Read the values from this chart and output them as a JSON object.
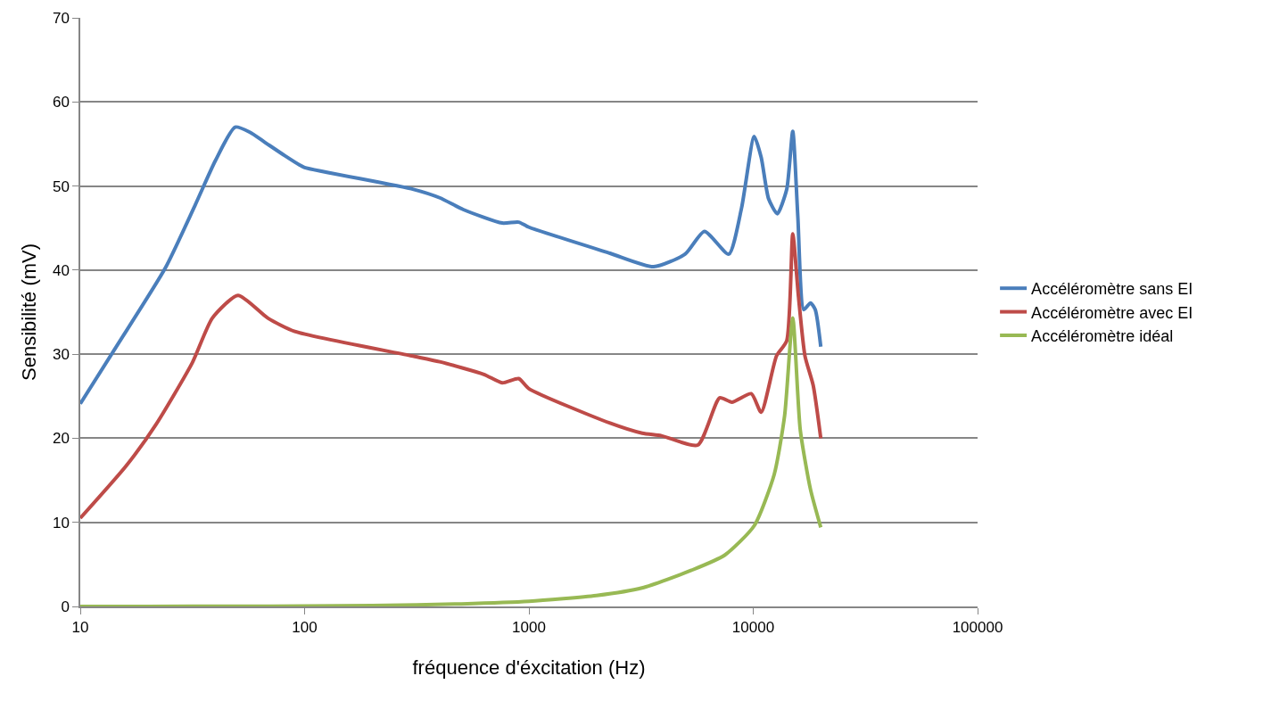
{
  "chart_data": {
    "type": "line",
    "xlabel": "fréquence d'éxcitation (Hz)",
    "ylabel": "Sensibilité (mV)",
    "log": "x",
    "grid": "y",
    "legend": "right",
    "marker": "none",
    "line_style": "solid",
    "xlim": [
      10,
      100000
    ],
    "xticks": [
      10,
      100,
      1000,
      10000,
      100000
    ],
    "ylim": [
      0,
      70
    ],
    "yticks": [
      0,
      10,
      20,
      30,
      40,
      50,
      60,
      70
    ],
    "series": [
      {
        "name": "Accéléromètre sans EI",
        "color": "#4a7ebb",
        "x": [
          10,
          14.4,
          24,
          32.6,
          40,
          49,
          57,
          66.5,
          81.7,
          95,
          100,
          306,
          400,
          510,
          760,
          900,
          1000,
          2300,
          3600,
          4970,
          6060,
          7780,
          8870,
          10100,
          10850,
          11700,
          12800,
          14100,
          15000,
          15800,
          16800,
          18000,
          18900,
          20000
        ],
        "values": [
          24.1,
          30.8,
          40.3,
          47.8,
          53,
          57,
          56.4,
          55.2,
          53.6,
          52.5,
          52.2,
          49.6,
          48.6,
          47.2,
          45.6,
          45.7,
          45.1,
          42,
          40.4,
          41.9,
          44.6,
          41.9,
          47.4,
          55.9,
          53.4,
          48.5,
          46.7,
          49.6,
          56.5,
          46.4,
          35.3,
          36.1,
          35.3,
          30.9
        ]
      },
      {
        "name": "Accéléromètre avec EI",
        "color": "#be4b48",
        "x": [
          10,
          16,
          21.7,
          31.6,
          38.8,
          50.5,
          68.5,
          90.4,
          300,
          400,
          630,
          760,
          900,
          1000,
          2300,
          3200,
          3900,
          5660,
          7080,
          8030,
          9800,
          10850,
          12700,
          14100,
          15000,
          15900,
          17000,
          18500,
          20000
        ],
        "values": [
          10.5,
          16.7,
          21.6,
          29,
          34.3,
          37,
          34.3,
          32.7,
          29.8,
          29.1,
          27.6,
          26.6,
          27.1,
          25.9,
          21.8,
          20.6,
          20.3,
          19.2,
          24.8,
          24.3,
          25.3,
          23.1,
          29.8,
          31.6,
          44.3,
          36.9,
          29.8,
          26.3,
          20
        ]
      },
      {
        "name": "Accéléromètre idéal",
        "color": "#98b954",
        "x": [
          10,
          20,
          50,
          100,
          200,
          500,
          1000,
          2000,
          3190,
          5300,
          7460,
          10100,
          12400,
          13800,
          15000,
          16200,
          18000,
          20000
        ],
        "values": [
          0,
          0.01,
          0.03,
          0.05,
          0.1,
          0.3,
          0.6,
          1.3,
          2.2,
          4.3,
          6.1,
          9.6,
          15.7,
          22.7,
          34.3,
          21,
          13.9,
          9.4
        ]
      }
    ]
  }
}
